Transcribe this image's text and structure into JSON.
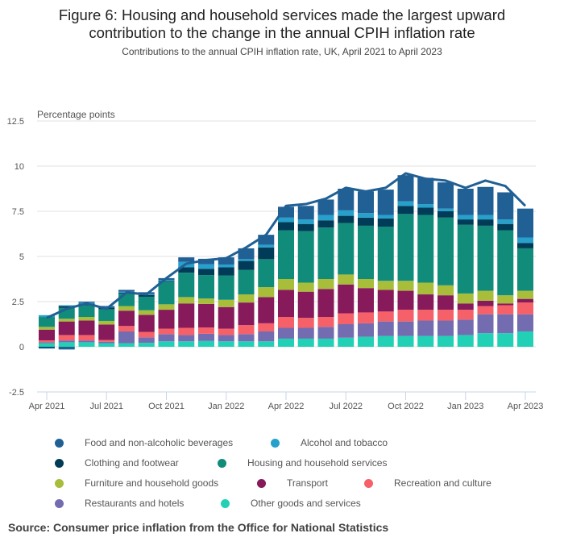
{
  "header": {
    "title_line1": "Figure 6: Housing and household services made the largest upward",
    "title_line2": "contribution to the change in the annual CPIH inflation rate",
    "subtitle": "Contributions to the annual CPIH inflation rate, UK, April 2021 to April 2023"
  },
  "source": "Source: Consumer price inflation from the Office for National Statistics",
  "chart_data": {
    "type": "bar",
    "stacked": true,
    "title": "Figure 6: Housing and household services made the largest upward contribution to the change in the annual CPIH inflation rate",
    "subtitle": "Contributions to the annual CPIH inflation rate, UK, April 2021 to April 2023",
    "xlabel": "",
    "ylabel": "Percentage points",
    "ylim": [
      -2.5,
      12.5
    ],
    "yticks": [
      -2.5,
      0,
      2.5,
      5,
      7.5,
      10,
      12.5
    ],
    "ytick_labels": [
      "-2.5",
      "0",
      "2.5",
      "5",
      "7.5",
      "10",
      "12.5"
    ],
    "grid": true,
    "legend_position": "bottom",
    "categories": [
      "Apr 2021",
      "May 2021",
      "Jun 2021",
      "Jul 2021",
      "Aug 2021",
      "Sep 2021",
      "Oct 2021",
      "Nov 2021",
      "Dec 2021",
      "Jan 2022",
      "Feb 2022",
      "Mar 2022",
      "Apr 2022",
      "May 2022",
      "Jun 2022",
      "Jul 2022",
      "Aug 2022",
      "Sep 2022",
      "Oct 2022",
      "Nov 2022",
      "Dec 2022",
      "Jan 2023",
      "Feb 2023",
      "Mar 2023",
      "Apr 2023"
    ],
    "xtick_labels": [
      "Apr 2021",
      "Jul 2021",
      "Oct 2021",
      "Jan 2022",
      "Apr 2022",
      "Jul 2022",
      "Oct 2022",
      "Jan 2023",
      "Apr 2023"
    ],
    "xtick_indices": [
      0,
      3,
      6,
      9,
      12,
      15,
      18,
      21,
      24
    ],
    "series": [
      {
        "name": "Other goods and services",
        "color": "#22d0b6",
        "values": [
          0.2,
          0.25,
          0.25,
          0.2,
          0.2,
          0.22,
          0.3,
          0.3,
          0.32,
          0.3,
          0.3,
          0.3,
          0.45,
          0.45,
          0.45,
          0.5,
          0.55,
          0.6,
          0.6,
          0.6,
          0.6,
          0.65,
          0.75,
          0.75,
          0.85
        ]
      },
      {
        "name": "Restaurants and hotels",
        "color": "#746cb1",
        "values": [
          0.05,
          0.1,
          0.1,
          0.08,
          0.65,
          0.3,
          0.4,
          0.35,
          0.4,
          0.35,
          0.4,
          0.55,
          0.6,
          0.6,
          0.65,
          0.75,
          0.75,
          0.8,
          0.8,
          0.85,
          0.85,
          0.85,
          1.05,
          1.05,
          0.95
        ]
      },
      {
        "name": "Recreation and culture",
        "color": "#f66068",
        "values": [
          0.1,
          0.3,
          0.3,
          0.1,
          0.3,
          0.3,
          0.3,
          0.4,
          0.35,
          0.35,
          0.5,
          0.45,
          0.6,
          0.55,
          0.55,
          0.6,
          0.6,
          0.55,
          0.65,
          0.6,
          0.6,
          0.55,
          0.45,
          0.5,
          0.65
        ]
      },
      {
        "name": "Transport",
        "color": "#871a5b",
        "values": [
          0.6,
          0.75,
          0.8,
          0.85,
          0.85,
          0.95,
          1.05,
          1.35,
          1.3,
          1.2,
          1.25,
          1.45,
          1.5,
          1.45,
          1.55,
          1.6,
          1.35,
          1.2,
          1.05,
          0.85,
          0.8,
          0.35,
          0.3,
          0.1,
          0.2
        ]
      },
      {
        "name": "Furniture and household goods",
        "color": "#a8bd3a",
        "values": [
          0.15,
          0.15,
          0.2,
          0.2,
          0.25,
          0.25,
          0.3,
          0.35,
          0.3,
          0.4,
          0.45,
          0.55,
          0.6,
          0.5,
          0.55,
          0.55,
          0.5,
          0.5,
          0.55,
          0.65,
          0.55,
          0.55,
          0.55,
          0.45,
          0.45
        ]
      },
      {
        "name": "Housing and household services",
        "color": "#118c7b",
        "values": [
          0.55,
          0.6,
          0.65,
          0.65,
          0.7,
          0.75,
          1.25,
          1.35,
          1.3,
          1.35,
          1.35,
          1.55,
          2.7,
          2.85,
          2.85,
          2.85,
          2.95,
          3.0,
          3.7,
          3.75,
          3.75,
          3.8,
          3.6,
          3.6,
          2.35
        ]
      },
      {
        "name": "Clothing and footwear",
        "color": "#003c57",
        "values": [
          -0.05,
          0.1,
          0.1,
          0.1,
          0.05,
          0.1,
          0.05,
          0.3,
          0.35,
          0.45,
          0.5,
          0.65,
          0.45,
          0.4,
          0.4,
          0.4,
          0.45,
          0.45,
          0.45,
          0.4,
          0.35,
          0.3,
          0.35,
          0.35,
          0.3
        ]
      },
      {
        "name": "Alcohol and tobacco",
        "color": "#27a0cc",
        "values": [
          0.1,
          0.05,
          0.05,
          0.03,
          0.05,
          0.05,
          0.05,
          0.3,
          0.25,
          0.15,
          0.1,
          0.15,
          0.25,
          0.25,
          0.3,
          0.3,
          0.25,
          0.2,
          0.25,
          0.2,
          0.15,
          0.25,
          0.25,
          0.25,
          0.3
        ]
      },
      {
        "name": "Food and non-alcoholic beverages",
        "color": "#206095",
        "values": [
          -0.05,
          -0.15,
          0.05,
          0.05,
          0.1,
          0.1,
          0.1,
          0.25,
          0.3,
          0.4,
          0.6,
          0.55,
          0.6,
          0.75,
          0.85,
          1.2,
          1.2,
          1.4,
          1.45,
          1.45,
          1.45,
          1.45,
          1.55,
          1.5,
          1.6
        ]
      }
    ],
    "line": {
      "name": "CPIH annual rate",
      "color": "#206095",
      "values": [
        1.6,
        2.1,
        2.4,
        2.1,
        3.0,
        2.9,
        3.8,
        4.6,
        4.8,
        4.9,
        5.5,
        6.2,
        7.8,
        7.9,
        8.2,
        8.8,
        8.6,
        8.8,
        9.6,
        9.3,
        9.2,
        8.8,
        9.2,
        8.9,
        7.8
      ]
    }
  },
  "legend": {
    "items": [
      {
        "label": "Food and non-alcoholic beverages",
        "color": "#206095"
      },
      {
        "label": "Alcohol and tobacco",
        "color": "#27a0cc"
      },
      {
        "label": "Clothing and footwear",
        "color": "#003c57"
      },
      {
        "label": "Housing and household services",
        "color": "#118c7b"
      },
      {
        "label": "Furniture and household goods",
        "color": "#a8bd3a"
      },
      {
        "label": "Transport",
        "color": "#871a5b"
      },
      {
        "label": "Recreation and culture",
        "color": "#f66068"
      },
      {
        "label": "Restaurants and hotels",
        "color": "#746cb1"
      },
      {
        "label": "Other goods and services",
        "color": "#22d0b6"
      }
    ]
  }
}
